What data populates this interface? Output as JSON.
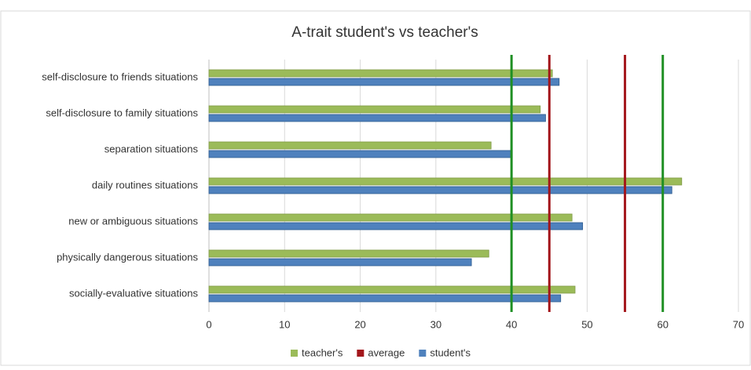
{
  "chart_data": {
    "type": "barh",
    "title": "A-trait student's vs teacher's",
    "categories": [
      "self-disclosure to friends situations",
      "self-disclosure to family situations",
      "separation situations",
      "daily routines situations",
      "new  or ambiguous situations",
      "physically dangerous situations",
      "socially-evaluative situations"
    ],
    "series": [
      {
        "name": "teacher's",
        "color": "#9bbb59",
        "values": [
          45.4,
          43.8,
          37.3,
          62.5,
          48.0,
          37.0,
          48.4
        ]
      },
      {
        "name": "student's",
        "color": "#4f81bd",
        "values": [
          46.3,
          44.5,
          39.9,
          61.2,
          49.4,
          34.7,
          46.5
        ]
      }
    ],
    "reference_lines": [
      {
        "name": "average",
        "color": "#a3161b",
        "values": [
          45,
          55
        ]
      },
      {
        "color": "#1f8f24",
        "values": [
          40,
          60
        ]
      }
    ],
    "xlim": [
      0,
      70
    ],
    "xticks": [
      0,
      10,
      20,
      30,
      40,
      50,
      60,
      70
    ],
    "grid": true
  }
}
